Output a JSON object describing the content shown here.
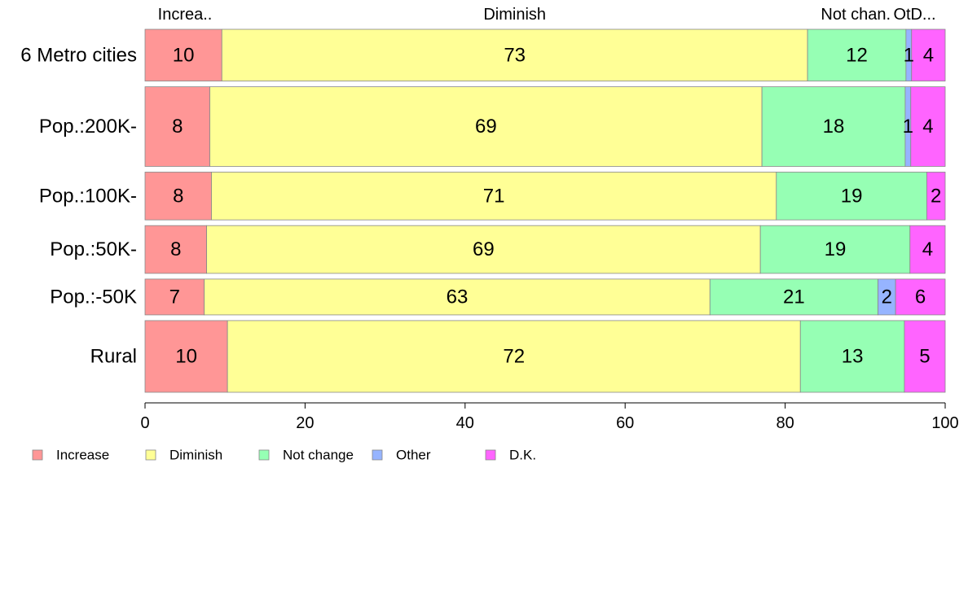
{
  "chart_data": {
    "type": "bar",
    "orientation": "horizontal",
    "stacked": true,
    "categories": [
      "6 Metro cities",
      "Pop.:200K-",
      "Pop.:100K-",
      "Pop.:50K-",
      "Pop.:-50K",
      "Rural"
    ],
    "row_weights": [
      1.3,
      2.0,
      1.2,
      1.2,
      0.9,
      1.8
    ],
    "series": [
      {
        "name": "Increase",
        "color": "#FF9696",
        "values": [
          9.6,
          8.1,
          8.3,
          7.7,
          7.4,
          10.3
        ],
        "labels": [
          "10",
          "8",
          "8",
          "8",
          "7",
          "10"
        ]
      },
      {
        "name": "Diminish",
        "color": "#FFFF96",
        "values": [
          73.2,
          69.0,
          70.6,
          69.2,
          63.2,
          71.6
        ],
        "labels": [
          "73",
          "69",
          "71",
          "69",
          "63",
          "72"
        ]
      },
      {
        "name": "Not change",
        "color": "#96FFB4",
        "values": [
          12.3,
          17.9,
          18.8,
          18.7,
          21.0,
          13.0
        ],
        "labels": [
          "12",
          "18",
          "19",
          "19",
          "21",
          "13"
        ]
      },
      {
        "name": "Other",
        "color": "#96B4FF",
        "values": [
          0.7,
          0.7,
          0.0,
          0.0,
          2.2,
          0.0
        ],
        "labels": [
          "1",
          "1",
          "",
          "",
          "2",
          ""
        ]
      },
      {
        "name": "D.K.",
        "color": "#FF64FF",
        "values": [
          4.2,
          4.3,
          2.3,
          4.4,
          6.2,
          5.1
        ],
        "labels": [
          "4",
          "4",
          "2",
          "4",
          "6",
          "5"
        ]
      }
    ],
    "top_labels": [
      "Increa..",
      "Diminish",
      "Not chan.",
      "Ot",
      "D..."
    ],
    "xlim": [
      0,
      100
    ],
    "xticks": [
      "0",
      "20",
      "40",
      "60",
      "80",
      "100"
    ],
    "legend_position": "bottom-left",
    "grid": false
  }
}
